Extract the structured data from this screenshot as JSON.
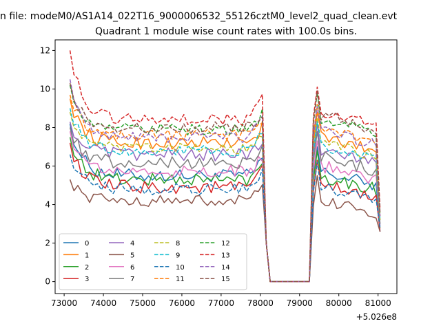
{
  "chart_data": {
    "type": "line",
    "suptitle": "n file: modeM0/AS1A14_022T16_9000006532_55126cztM0_level2_quad_clean.evt",
    "title": "Quadrant 1 module wise count rates with 100.0s bins.",
    "xlabel": "",
    "ylabel": "",
    "x_offset_label": "+5.026e8",
    "xlim": [
      72770,
      81480
    ],
    "ylim": [
      -0.62,
      12.55
    ],
    "xticks": [
      73000,
      74000,
      75000,
      76000,
      77000,
      78000,
      79000,
      80000,
      81000
    ],
    "xtick_labels": [
      "73000",
      "74000",
      "75000",
      "76000",
      "77000",
      "78000",
      "79000",
      "80000",
      "81000"
    ],
    "yticks": [
      0,
      2,
      4,
      6,
      8,
      10,
      12
    ],
    "ytick_labels": [
      "0",
      "2",
      "4",
      "6",
      "8",
      "10",
      "12"
    ],
    "grid": false,
    "legend_placement": "lower-left",
    "legend_columns": 4,
    "segments": {
      "seg1_start": 73150,
      "seg1_end": 78050,
      "drop1": 78150,
      "flat_start": 78250,
      "flat_end": 79250,
      "seg2_start": 79350,
      "seg2_end": 80950,
      "end": 81050
    },
    "series": [
      {
        "name": "0",
        "color": "#1f77b4",
        "dash": "solid",
        "level": 5.5,
        "start": 8.2,
        "rise": 6.4,
        "seg2": 5.8,
        "tail": 2.6,
        "amp": 0.35
      },
      {
        "name": "1",
        "color": "#ff7f0e",
        "dash": "solid",
        "level": 7.2,
        "start": 9.5,
        "rise": 8.0,
        "seg2": 7.6,
        "tail": 3.2,
        "amp": 0.35
      },
      {
        "name": "2",
        "color": "#2ca02c",
        "dash": "solid",
        "level": 5.3,
        "start": 7.5,
        "rise": 6.2,
        "seg2": 5.6,
        "tail": 2.8,
        "amp": 0.35
      },
      {
        "name": "3",
        "color": "#d62728",
        "dash": "solid",
        "level": 4.9,
        "start": 7.2,
        "rise": 5.8,
        "seg2": 5.1,
        "tail": 2.6,
        "amp": 0.35
      },
      {
        "name": "4",
        "color": "#9467bd",
        "dash": "solid",
        "level": 6.6,
        "start": 8.3,
        "rise": 7.3,
        "seg2": 7.0,
        "tail": 3.0,
        "amp": 0.35
      },
      {
        "name": "5",
        "color": "#8c564b",
        "dash": "solid",
        "level": 4.2,
        "start": 5.3,
        "rise": 4.9,
        "seg2": 4.3,
        "tail": 2.6,
        "amp": 0.3
      },
      {
        "name": "6",
        "color": "#e377c2",
        "dash": "solid",
        "level": 5.7,
        "start": 7.8,
        "rise": 6.5,
        "seg2": 6.1,
        "tail": 2.9,
        "amp": 0.35
      },
      {
        "name": "7",
        "color": "#7f7f7f",
        "dash": "solid",
        "level": 6.2,
        "start": 8.0,
        "rise": 7.0,
        "seg2": 6.6,
        "tail": 3.0,
        "amp": 0.35
      },
      {
        "name": "8",
        "color": "#bcbd22",
        "dash": "dashed",
        "level": 6.9,
        "start": 8.8,
        "rise": 7.8,
        "seg2": 7.3,
        "tail": 3.2,
        "amp": 0.3
      },
      {
        "name": "9",
        "color": "#17becf",
        "dash": "dashed",
        "level": 6.8,
        "start": 9.0,
        "rise": 7.7,
        "seg2": 7.1,
        "tail": 3.2,
        "amp": 0.3
      },
      {
        "name": "10",
        "color": "#1f77b4",
        "dash": "dashed",
        "level": 4.8,
        "start": 6.6,
        "rise": 5.6,
        "seg2": 5.0,
        "tail": 2.8,
        "amp": 0.3
      },
      {
        "name": "11",
        "color": "#ff7f0e",
        "dash": "dashed",
        "level": 7.6,
        "start": 9.7,
        "rise": 8.3,
        "seg2": 8.0,
        "tail": 3.4,
        "amp": 0.3
      },
      {
        "name": "12",
        "color": "#2ca02c",
        "dash": "dashed",
        "level": 7.9,
        "start": 10.2,
        "rise": 8.8,
        "seg2": 8.6,
        "tail": 3.5,
        "amp": 0.3
      },
      {
        "name": "13",
        "color": "#d62728",
        "dash": "dashed",
        "level": 8.4,
        "start": 12.0,
        "rise": 9.9,
        "seg2": 8.9,
        "tail": 3.8,
        "amp": 0.3
      },
      {
        "name": "14",
        "color": "#9467bd",
        "dash": "dashed",
        "level": 7.5,
        "start": 10.5,
        "rise": 8.5,
        "seg2": 7.9,
        "tail": 3.4,
        "amp": 0.3
      },
      {
        "name": "15",
        "color": "#8c564b",
        "dash": "dashed",
        "level": 8.0,
        "start": 10.3,
        "rise": 8.8,
        "seg2": 8.7,
        "tail": 3.6,
        "amp": 0.3
      }
    ]
  }
}
